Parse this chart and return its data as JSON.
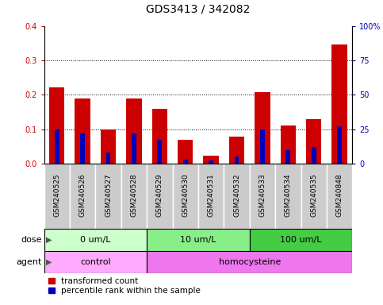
{
  "title": "GDS3413 / 342082",
  "samples": [
    "GSM240525",
    "GSM240526",
    "GSM240527",
    "GSM240528",
    "GSM240529",
    "GSM240530",
    "GSM240531",
    "GSM240532",
    "GSM240533",
    "GSM240534",
    "GSM240535",
    "GSM240848"
  ],
  "red_values": [
    0.222,
    0.19,
    0.098,
    0.188,
    0.158,
    0.068,
    0.022,
    0.078,
    0.208,
    0.11,
    0.128,
    0.345
  ],
  "blue_pct": [
    25,
    22,
    8,
    22,
    17,
    3,
    2,
    5,
    25,
    10,
    12,
    27
  ],
  "ylim_left": [
    0,
    0.4
  ],
  "ylim_right": [
    0,
    100
  ],
  "yticks_left": [
    0,
    0.1,
    0.2,
    0.3,
    0.4
  ],
  "yticks_right": [
    0,
    25,
    50,
    75,
    100
  ],
  "ytick_labels_right": [
    "0",
    "25",
    "50",
    "75",
    "100%"
  ],
  "dose_groups": [
    {
      "label": "0 um/L",
      "start": 0,
      "end": 4,
      "color": "#ccffcc"
    },
    {
      "label": "10 um/L",
      "start": 4,
      "end": 8,
      "color": "#88ee88"
    },
    {
      "label": "100 um/L",
      "start": 8,
      "end": 12,
      "color": "#44cc44"
    }
  ],
  "agent_groups": [
    {
      "label": "control",
      "start": 0,
      "end": 4,
      "color": "#ffaaff"
    },
    {
      "label": "homocysteine",
      "start": 4,
      "end": 12,
      "color": "#ee77ee"
    }
  ],
  "dose_label": "dose",
  "agent_label": "agent",
  "red_color": "#cc0000",
  "blue_color": "#0000bb",
  "bg_bar_color": "#cccccc",
  "legend_red": "transformed count",
  "legend_blue": "percentile rank within the sample",
  "left_axis_color": "#cc0000",
  "right_axis_color": "#0000bb",
  "bar_width": 0.6,
  "title_fontsize": 10,
  "tick_fontsize": 7,
  "label_fontsize": 8,
  "legend_fontsize": 7.5,
  "sample_fontsize": 6.5
}
